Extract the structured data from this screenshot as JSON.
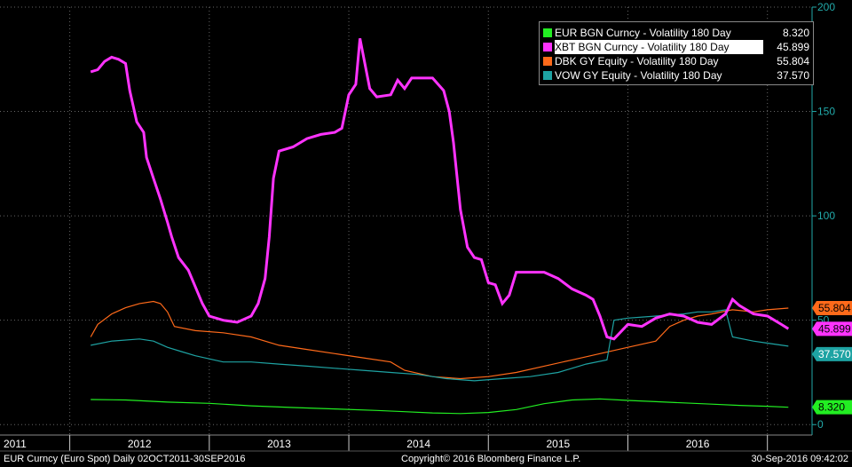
{
  "chart_data": {
    "type": "line",
    "ylim": [
      -5,
      200
    ],
    "y_ticks": [
      0,
      50,
      100,
      150,
      200
    ],
    "x_tick_labels": [
      "2011",
      "2012",
      "2013",
      "2014",
      "2015",
      "2016"
    ],
    "grid": true,
    "legend_placement": "top-right",
    "series": [
      {
        "name": "EUR BGN Curncy - Volatility 180 Day",
        "last": "8.320",
        "color": "#22ee22",
        "selected": false,
        "points": [
          [
            2011.75,
            12.0
          ],
          [
            2012.0,
            11.8
          ],
          [
            2012.3,
            10.8
          ],
          [
            2012.6,
            10.2
          ],
          [
            2012.9,
            9.0
          ],
          [
            2013.2,
            8.2
          ],
          [
            2013.5,
            7.5
          ],
          [
            2013.8,
            6.8
          ],
          [
            2014.0,
            6.2
          ],
          [
            2014.2,
            5.6
          ],
          [
            2014.4,
            5.3
          ],
          [
            2014.6,
            5.8
          ],
          [
            2014.8,
            7.2
          ],
          [
            2015.0,
            10.0
          ],
          [
            2015.2,
            11.8
          ],
          [
            2015.4,
            12.3
          ],
          [
            2015.6,
            11.6
          ],
          [
            2015.8,
            11.0
          ],
          [
            2016.0,
            10.4
          ],
          [
            2016.2,
            9.8
          ],
          [
            2016.4,
            9.2
          ],
          [
            2016.6,
            8.8
          ],
          [
            2016.75,
            8.32
          ]
        ]
      },
      {
        "name": "XBT BGN Curncy - Volatility 180 Day",
        "last": "45.899",
        "color": "#ff33ff",
        "selected": true,
        "points": [
          [
            2011.75,
            169
          ],
          [
            2011.8,
            170
          ],
          [
            2011.85,
            174
          ],
          [
            2011.9,
            176
          ],
          [
            2011.95,
            175
          ],
          [
            2012.0,
            173
          ],
          [
            2012.03,
            160
          ],
          [
            2012.08,
            145
          ],
          [
            2012.13,
            140
          ],
          [
            2012.15,
            128
          ],
          [
            2012.2,
            118
          ],
          [
            2012.25,
            108
          ],
          [
            2012.3,
            97
          ],
          [
            2012.33,
            90
          ],
          [
            2012.38,
            80
          ],
          [
            2012.45,
            74
          ],
          [
            2012.5,
            66
          ],
          [
            2012.55,
            58
          ],
          [
            2012.6,
            52
          ],
          [
            2012.7,
            50
          ],
          [
            2012.8,
            49
          ],
          [
            2012.9,
            52
          ],
          [
            2012.95,
            58
          ],
          [
            2013.0,
            70
          ],
          [
            2013.03,
            90
          ],
          [
            2013.06,
            118
          ],
          [
            2013.1,
            131
          ],
          [
            2013.2,
            133
          ],
          [
            2013.3,
            137
          ],
          [
            2013.4,
            139
          ],
          [
            2013.5,
            140
          ],
          [
            2013.55,
            142
          ],
          [
            2013.6,
            158
          ],
          [
            2013.65,
            163
          ],
          [
            2013.68,
            185
          ],
          [
            2013.7,
            178
          ],
          [
            2013.75,
            161
          ],
          [
            2013.8,
            157
          ],
          [
            2013.9,
            158
          ],
          [
            2013.95,
            165
          ],
          [
            2014.0,
            161
          ],
          [
            2014.05,
            166
          ],
          [
            2014.2,
            166
          ],
          [
            2014.28,
            160
          ],
          [
            2014.32,
            150
          ],
          [
            2014.35,
            135
          ],
          [
            2014.4,
            103
          ],
          [
            2014.45,
            85
          ],
          [
            2014.5,
            80
          ],
          [
            2014.55,
            79
          ],
          [
            2014.6,
            68
          ],
          [
            2014.65,
            67
          ],
          [
            2014.7,
            58
          ],
          [
            2014.75,
            62
          ],
          [
            2014.8,
            73
          ],
          [
            2014.9,
            73
          ],
          [
            2015.0,
            73
          ],
          [
            2015.1,
            70
          ],
          [
            2015.2,
            65
          ],
          [
            2015.3,
            62
          ],
          [
            2015.35,
            60
          ],
          [
            2015.4,
            52
          ],
          [
            2015.45,
            42
          ],
          [
            2015.5,
            41
          ],
          [
            2015.6,
            48
          ],
          [
            2015.7,
            47
          ],
          [
            2015.8,
            51
          ],
          [
            2015.9,
            53
          ],
          [
            2016.0,
            52
          ],
          [
            2016.1,
            49
          ],
          [
            2016.2,
            48
          ],
          [
            2016.3,
            53
          ],
          [
            2016.35,
            60
          ],
          [
            2016.4,
            57
          ],
          [
            2016.5,
            53
          ],
          [
            2016.6,
            52
          ],
          [
            2016.7,
            48
          ],
          [
            2016.75,
            45.899
          ]
        ]
      },
      {
        "name": "DBK GY Equity - Volatility 180 Day",
        "last": "55.804",
        "color": "#ff6a1a",
        "selected": false,
        "points": [
          [
            2011.75,
            42
          ],
          [
            2011.8,
            48
          ],
          [
            2011.9,
            53
          ],
          [
            2012.0,
            56
          ],
          [
            2012.1,
            58
          ],
          [
            2012.2,
            59
          ],
          [
            2012.25,
            58
          ],
          [
            2012.3,
            54
          ],
          [
            2012.35,
            47
          ],
          [
            2012.5,
            45
          ],
          [
            2012.7,
            44
          ],
          [
            2012.9,
            42
          ],
          [
            2013.1,
            38
          ],
          [
            2013.3,
            36
          ],
          [
            2013.5,
            34
          ],
          [
            2013.7,
            32
          ],
          [
            2013.9,
            30
          ],
          [
            2014.0,
            26
          ],
          [
            2014.2,
            23
          ],
          [
            2014.4,
            22
          ],
          [
            2014.6,
            23
          ],
          [
            2014.8,
            25
          ],
          [
            2015.0,
            28
          ],
          [
            2015.2,
            31
          ],
          [
            2015.4,
            34
          ],
          [
            2015.6,
            37
          ],
          [
            2015.8,
            40
          ],
          [
            2015.9,
            47
          ],
          [
            2016.0,
            50
          ],
          [
            2016.1,
            52
          ],
          [
            2016.2,
            53
          ],
          [
            2016.35,
            55
          ],
          [
            2016.5,
            54
          ],
          [
            2016.6,
            55
          ],
          [
            2016.75,
            55.804
          ]
        ]
      },
      {
        "name": "VOW GY Equity - Volatility 180 Day",
        "last": "37.570",
        "color": "#1ea3a3",
        "selected": false,
        "points": [
          [
            2011.75,
            38
          ],
          [
            2011.9,
            40
          ],
          [
            2012.1,
            41
          ],
          [
            2012.2,
            40
          ],
          [
            2012.3,
            37
          ],
          [
            2012.4,
            35
          ],
          [
            2012.5,
            33
          ],
          [
            2012.7,
            30
          ],
          [
            2012.9,
            30
          ],
          [
            2013.1,
            29
          ],
          [
            2013.3,
            28
          ],
          [
            2013.5,
            27
          ],
          [
            2013.7,
            26
          ],
          [
            2013.9,
            25
          ],
          [
            2014.1,
            24
          ],
          [
            2014.3,
            22
          ],
          [
            2014.5,
            21
          ],
          [
            2014.7,
            22
          ],
          [
            2014.9,
            23
          ],
          [
            2015.1,
            25
          ],
          [
            2015.2,
            27
          ],
          [
            2015.3,
            29
          ],
          [
            2015.45,
            31
          ],
          [
            2015.5,
            50
          ],
          [
            2015.6,
            51
          ],
          [
            2015.8,
            52
          ],
          [
            2016.0,
            53
          ],
          [
            2016.1,
            54
          ],
          [
            2016.2,
            54
          ],
          [
            2016.3,
            55
          ],
          [
            2016.35,
            42
          ],
          [
            2016.5,
            40
          ],
          [
            2016.6,
            39
          ],
          [
            2016.75,
            37.57
          ]
        ]
      }
    ]
  },
  "footer": {
    "left": "EUR Curncy (Euro Spot)  Daily 02OCT2011-30SEP2016",
    "center": "Copyright© 2016 Bloomberg Finance L.P.",
    "right": "30-Sep-2016 09:42:02"
  }
}
